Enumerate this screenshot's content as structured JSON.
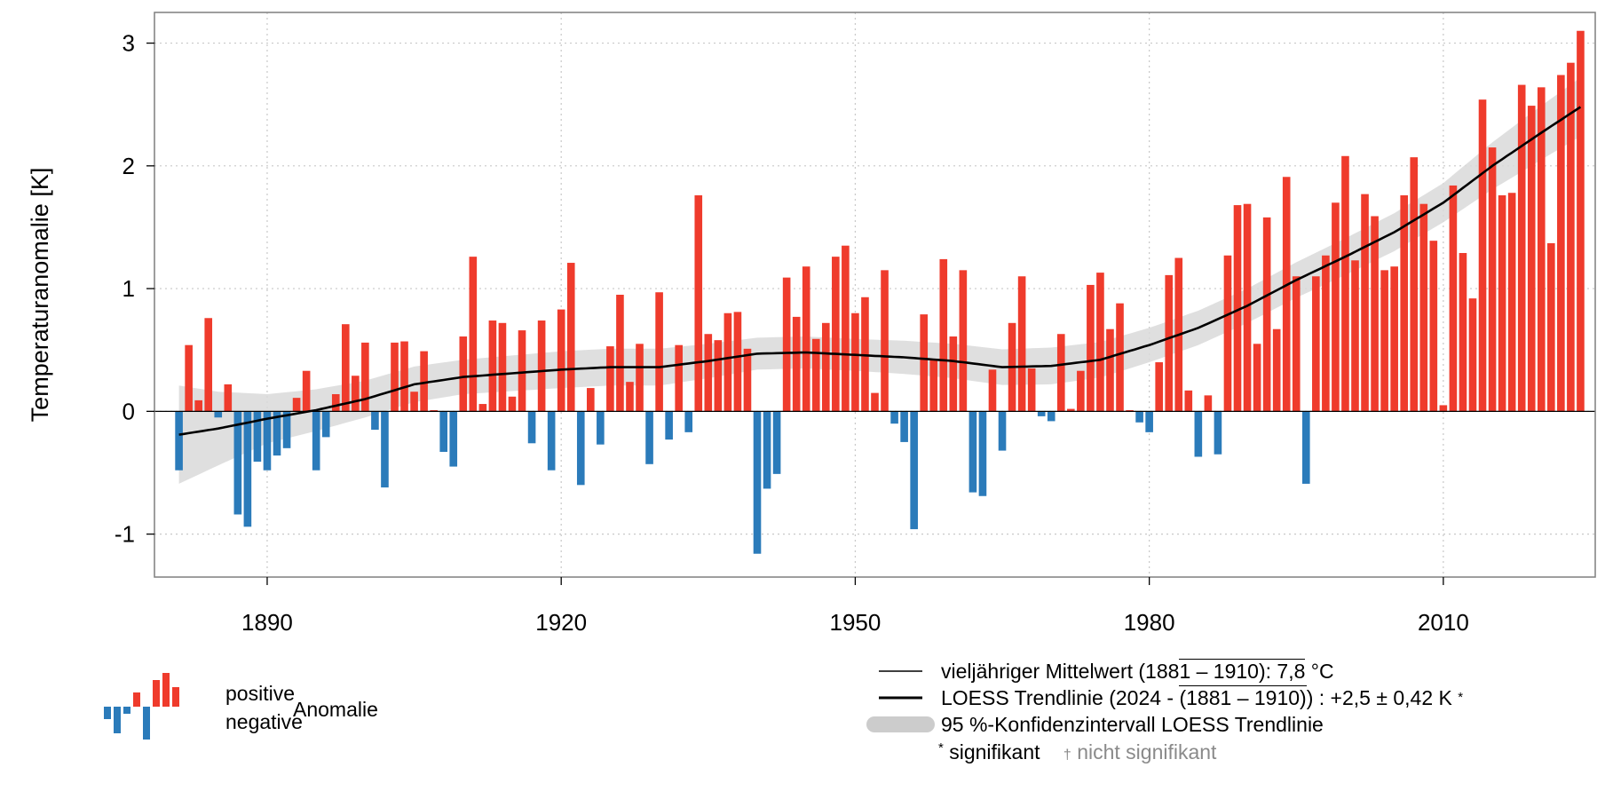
{
  "chart_data": {
    "type": "bar",
    "ylabel": "Temperaturanomalie [K]",
    "xlim": [
      1878.5,
      2025.5
    ],
    "ylim": [
      -1.35,
      3.25
    ],
    "x_ticks": [
      "1890",
      "1920",
      "1950",
      "1980",
      "2010"
    ],
    "y_ticks": [
      "3",
      "2",
      "1",
      "0",
      "-1"
    ],
    "grid": true,
    "colors": {
      "positive": "#ef3b2c",
      "negative": "#2b7bba",
      "trend": "#000000",
      "ci": "#d9d9d9"
    },
    "x_start": 1881,
    "values": [
      -0.48,
      0.54,
      0.09,
      0.76,
      -0.05,
      0.22,
      -0.84,
      -0.94,
      -0.41,
      -0.48,
      -0.36,
      -0.3,
      0.11,
      0.33,
      -0.48,
      -0.21,
      0.14,
      0.71,
      0.29,
      0.56,
      -0.15,
      -0.62,
      0.56,
      0.57,
      0.16,
      0.49,
      0.01,
      -0.33,
      -0.45,
      0.61,
      1.26,
      0.06,
      0.74,
      0.72,
      0.12,
      0.66,
      -0.26,
      0.74,
      -0.48,
      0.83,
      1.21,
      -0.6,
      0.19,
      -0.27,
      0.53,
      0.95,
      0.24,
      0.55,
      -0.43,
      0.97,
      -0.23,
      0.54,
      -0.17,
      1.76,
      0.63,
      0.58,
      0.8,
      0.81,
      0.51,
      -1.16,
      -0.63,
      -0.51,
      1.09,
      0.77,
      1.18,
      0.59,
      0.72,
      1.26,
      1.35,
      0.8,
      0.93,
      0.15,
      1.15,
      -0.1,
      -0.25,
      -0.96,
      0.79,
      0.42,
      1.24,
      0.61,
      1.15,
      -0.66,
      -0.69,
      0.34,
      -0.32,
      0.72,
      1.1,
      0.35,
      -0.04,
      -0.08,
      0.63,
      0.02,
      0.33,
      1.03,
      1.13,
      0.67,
      0.88,
      0.01,
      -0.09,
      -0.17,
      0.4,
      1.11,
      1.25,
      0.17,
      -0.37,
      0.13,
      -0.35,
      1.27,
      1.68,
      1.69,
      0.55,
      1.58,
      0.67,
      1.91,
      1.1,
      -0.59,
      1.1,
      1.27,
      1.7,
      2.08,
      1.23,
      1.77,
      1.59,
      1.15,
      1.18,
      1.76,
      2.07,
      1.69,
      1.39,
      0.05,
      1.84,
      1.29,
      0.92,
      2.54,
      2.15,
      1.76,
      1.78,
      2.66,
      2.49,
      2.64,
      1.37,
      2.74,
      2.84,
      3.1
    ],
    "trend": [
      [
        1881,
        -0.19
      ],
      [
        1885,
        -0.14
      ],
      [
        1890,
        -0.06
      ],
      [
        1895,
        0.01
      ],
      [
        1900,
        0.1
      ],
      [
        1905,
        0.22
      ],
      [
        1910,
        0.28
      ],
      [
        1915,
        0.31
      ],
      [
        1920,
        0.34
      ],
      [
        1925,
        0.36
      ],
      [
        1930,
        0.36
      ],
      [
        1935,
        0.41
      ],
      [
        1940,
        0.47
      ],
      [
        1945,
        0.48
      ],
      [
        1950,
        0.46
      ],
      [
        1955,
        0.44
      ],
      [
        1960,
        0.41
      ],
      [
        1965,
        0.36
      ],
      [
        1970,
        0.37
      ],
      [
        1975,
        0.42
      ],
      [
        1980,
        0.54
      ],
      [
        1985,
        0.68
      ],
      [
        1990,
        0.86
      ],
      [
        1995,
        1.07
      ],
      [
        2000,
        1.26
      ],
      [
        2005,
        1.46
      ],
      [
        2010,
        1.7
      ],
      [
        2015,
        2.0
      ],
      [
        2020,
        2.27
      ],
      [
        2024,
        2.48
      ]
    ],
    "ci_halfwidth": [
      [
        1881,
        0.4
      ],
      [
        1885,
        0.3
      ],
      [
        1890,
        0.2
      ],
      [
        1895,
        0.17
      ],
      [
        1900,
        0.15
      ],
      [
        1910,
        0.14
      ],
      [
        1920,
        0.15
      ],
      [
        1930,
        0.15
      ],
      [
        1940,
        0.13
      ],
      [
        1950,
        0.13
      ],
      [
        1960,
        0.14
      ],
      [
        1970,
        0.15
      ],
      [
        1980,
        0.14
      ],
      [
        1990,
        0.14
      ],
      [
        2000,
        0.15
      ],
      [
        2010,
        0.16
      ],
      [
        2018,
        0.21
      ],
      [
        2024,
        0.24
      ]
    ]
  },
  "legend_left": {
    "positive": "positive",
    "negative": "negative",
    "anomalie": "Anomalie"
  },
  "legend_right": {
    "line1_pre": "vieljähriger Mittelwert (188",
    "line1_over": "1 – 1910): 7,8",
    "line1_post": " °C",
    "line2_pre": "LOESS Trendlinie (2024 - ",
    "line2_over": "(1881 – 1910)",
    "line2_post": ") : +2,5 ± 0,42 K",
    "line2_mark": "*",
    "line3": "95 %-Konfidenzintervall LOESS Trendlinie",
    "sig_mark": "*",
    "sig_label": "signifikant",
    "nonsig_mark": "†",
    "nonsig_label": "nicht signifikant"
  }
}
